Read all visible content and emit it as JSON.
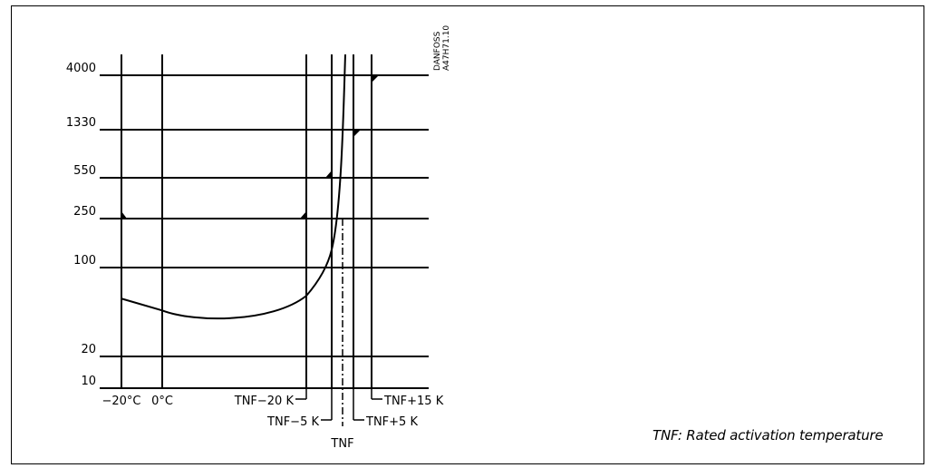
{
  "chart_data": {
    "type": "line",
    "title": "",
    "xlabel": "",
    "ylabel": "",
    "y_ticks": [
      "4000",
      "1330",
      "550",
      "250",
      "100",
      "20",
      "10"
    ],
    "x_labels": {
      "minus20": "−20°C",
      "zero": "0°C",
      "tnf_minus20": "TNF−20 K",
      "tnf_minus5": "TNF−5 K",
      "tnf": "TNF",
      "tnf_plus5": "TNF+5 K",
      "tnf_plus15": "TNF+15 K"
    },
    "grid": true,
    "series": [
      {
        "values": [
          {
            "x": "−20°C",
            "y": 57
          },
          {
            "x": "0°C",
            "y": 46
          },
          {
            "x": "TNF−20 K",
            "y": 60
          },
          {
            "x": "TNF−5 K",
            "y": 140
          },
          {
            "x": "TNF",
            "y": 4000
          }
        ]
      }
    ]
  },
  "side_code": {
    "line1": "DANFOSS",
    "line2": "A47H71.10"
  },
  "caption": "TNF: Rated activation temperature"
}
